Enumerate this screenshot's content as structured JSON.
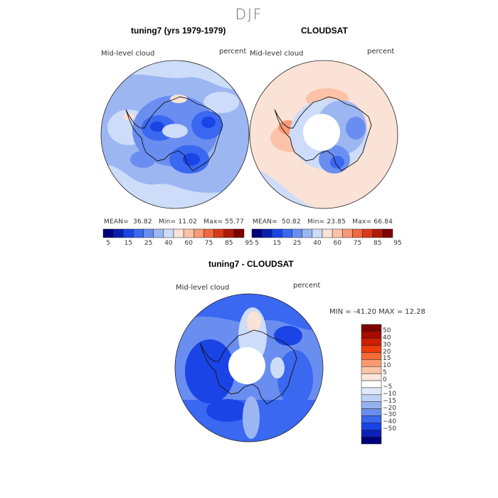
{
  "season": "DJF",
  "panels": {
    "model": {
      "title": "tuning7 (yrs 1979-1979)",
      "var_label": "Mid-level cloud",
      "units": "percent",
      "mean_label": "MEAN=",
      "mean": "36.82",
      "min_label": "Min=",
      "min": "11.02",
      "max_label": "Max=",
      "max": "55.77"
    },
    "obs": {
      "title": "CLOUDSAT",
      "var_label": "Mid-level cloud",
      "units": "percent",
      "mean_label": "MEAN=",
      "mean": "50.82",
      "min_label": "Min=",
      "min": "23.85",
      "max_label": "Max=",
      "max": "66.84"
    },
    "diff": {
      "title": "tuning7 - CLOUDSAT",
      "var_label": "Mid-level cloud",
      "units": "percent",
      "range_text": "MIN = -41.20 MAX =  12.28"
    }
  },
  "colorbar_abs": {
    "colors": [
      "#00007a",
      "#0a1fb0",
      "#1b44e6",
      "#3a68f0",
      "#6a8ef0",
      "#9cb6f2",
      "#cddcf8",
      "#fbe2d6",
      "#fcc3a8",
      "#f89a76",
      "#f0683f",
      "#d83a1a",
      "#b01a08",
      "#7d0000"
    ],
    "labels": [
      "5",
      "15",
      "25",
      "40",
      "60",
      "75",
      "85",
      "95"
    ]
  },
  "colorbar_diff": {
    "colors": [
      "#7d0000",
      "#a80a00",
      "#cc2000",
      "#ec3c0c",
      "#f86a34",
      "#f99a70",
      "#fbc4a6",
      "#fce6dc",
      "#ffffff",
      "#dfe8fb",
      "#bfd2f6",
      "#94b2f0",
      "#6a8ef0",
      "#3a66ee",
      "#1b44e6",
      "#0a22b8",
      "#00007a"
    ],
    "labels": [
      "50",
      "40",
      "30",
      "20",
      "15",
      "10",
      "5",
      "0",
      "−5",
      "−10",
      "−15",
      "−20",
      "−30",
      "−40",
      "−50"
    ]
  }
}
